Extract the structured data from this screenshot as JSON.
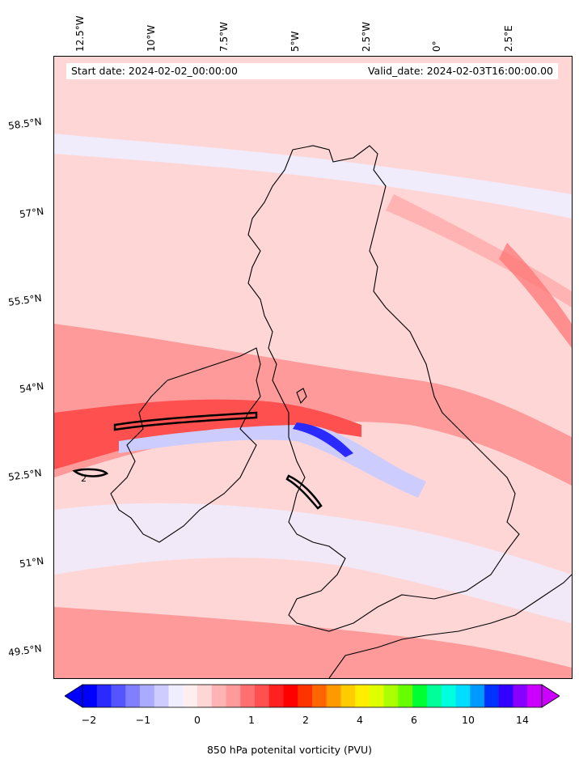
{
  "header": {
    "start_date": "Start date: 2024-02-02_00:00:00",
    "valid_date": "Valid_date: 2024-02-03T16:00:00.00"
  },
  "longitude_labels": [
    "12.5°W",
    "10°W",
    "7.5°W",
    "5°W",
    "2.5°W",
    "0°",
    "2.5°E"
  ],
  "latitude_labels": [
    "58.5°N",
    "57°N",
    "55.5°N",
    "54°N",
    "52.5°N",
    "51°N",
    "49.5°N"
  ],
  "colorbar": {
    "label": "850 hPa potenital vorticity (PVU)",
    "tick_labels": [
      "−2",
      "−1",
      "0",
      "1",
      "2",
      "4",
      "6",
      "10",
      "14"
    ],
    "colors": [
      "#0000ff",
      "#2a2aff",
      "#5555ff",
      "#7f7fff",
      "#aaaaff",
      "#ccccff",
      "#eeeeff",
      "#ffeeee",
      "#ffd6d6",
      "#ffb3b3",
      "#ff9a9a",
      "#ff7070",
      "#ff5050",
      "#ff2020",
      "#ff0000",
      "#ff3300",
      "#ff6600",
      "#ff9900",
      "#ffcc00",
      "#ffee00",
      "#ddff00",
      "#aaff00",
      "#66ff00",
      "#00ff33",
      "#00ff99",
      "#00ffdd",
      "#00ddff",
      "#0099ff",
      "#0033ff",
      "#3300ff",
      "#8800ff",
      "#cc00ff"
    ]
  },
  "contour_label": "2"
}
